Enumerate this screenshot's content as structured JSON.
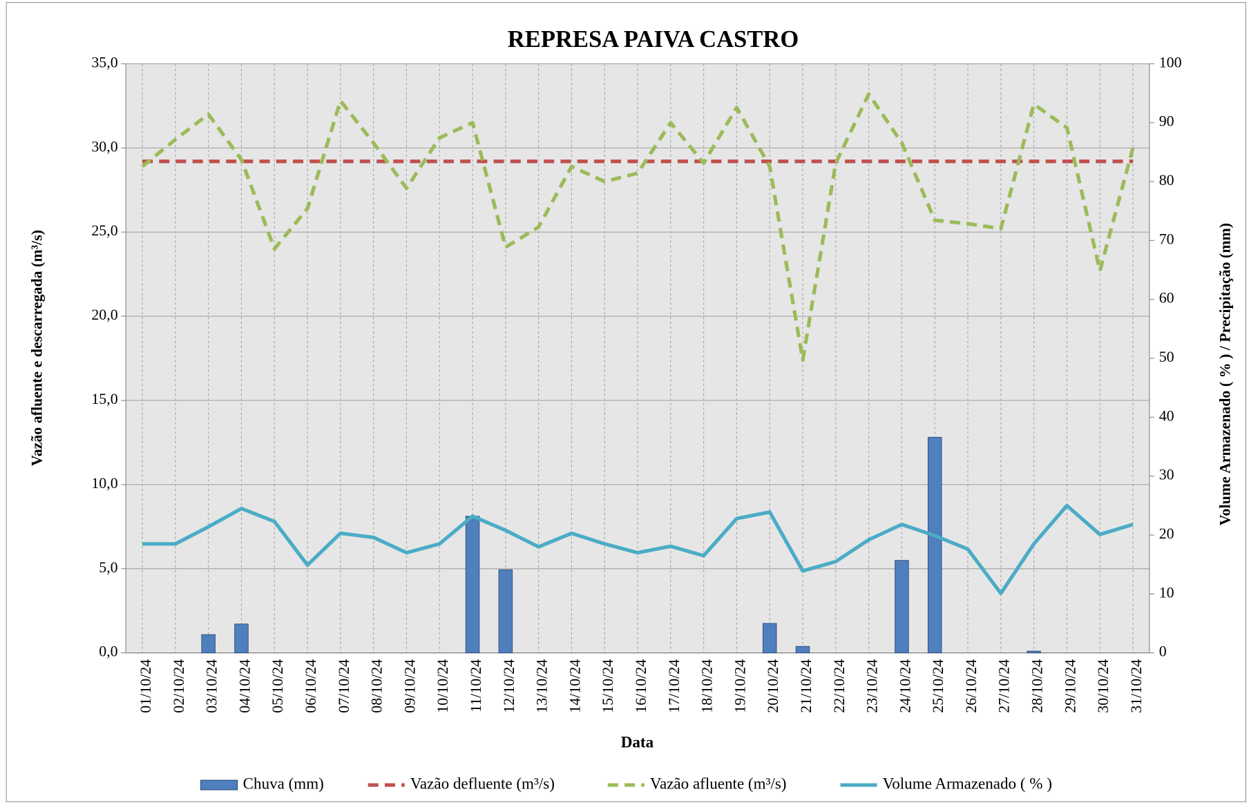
{
  "chart_data": {
    "type": "bar",
    "title": "REPRESA PAIVA CASTRO",
    "x_label": "Data",
    "y_label": "Vazão afluente e descarregada (m³/s)",
    "y2_label": "Volume Armazenado ( % ) / Precipitação  (mm)",
    "categories": [
      "01/10/24",
      "02/10/24",
      "03/10/24",
      "04/10/24",
      "05/10/24",
      "06/10/24",
      "07/10/24",
      "08/10/24",
      "09/10/24",
      "10/10/24",
      "11/10/24",
      "12/10/24",
      "13/10/24",
      "14/10/24",
      "15/10/24",
      "16/10/24",
      "17/10/24",
      "18/10/24",
      "19/10/24",
      "20/10/24",
      "21/10/24",
      "22/10/24",
      "23/10/24",
      "24/10/24",
      "25/10/24",
      "26/10/24",
      "27/10/24",
      "28/10/24",
      "29/10/24",
      "30/10/24",
      "31/10/24"
    ],
    "series": [
      {
        "name": "Chuva (mm)",
        "type": "bar",
        "axis": "y2",
        "color": "#4f7fbd",
        "values": [
          0,
          0,
          3.1,
          4.9,
          0,
          0,
          0,
          0,
          0,
          0,
          23.2,
          14.1,
          0,
          0,
          0,
          0,
          0,
          0,
          0,
          5.0,
          1.1,
          0,
          0,
          15.7,
          36.6,
          0,
          0,
          0.3,
          0,
          0,
          0
        ]
      },
      {
        "name": "Vazão defluente (m³/s)",
        "type": "line",
        "dashed": true,
        "color": "#c0504d",
        "values": [
          29.2,
          29.2,
          29.2,
          29.2,
          29.2,
          29.2,
          29.2,
          29.2,
          29.2,
          29.2,
          29.2,
          29.2,
          29.2,
          29.2,
          29.2,
          29.2,
          29.2,
          29.2,
          29.2,
          29.2,
          29.2,
          29.2,
          29.2,
          29.2,
          29.2,
          29.2,
          29.2,
          29.2,
          29.2,
          29.2,
          29.2
        ]
      },
      {
        "name": "Vazão afluente (m³/s)",
        "type": "line",
        "dashed": true,
        "color": "#9bbb59",
        "values": [
          28.9,
          30.5,
          32.0,
          29.3,
          24.0,
          26.4,
          32.8,
          30.3,
          27.6,
          30.6,
          31.5,
          24.1,
          25.3,
          28.9,
          28.0,
          28.5,
          31.5,
          29.1,
          32.4,
          28.9,
          17.4,
          29.1,
          33.2,
          30.3,
          25.7,
          25.5,
          25.2,
          32.6,
          31.2,
          22.7,
          30.0
        ]
      },
      {
        "name": "Volume Armazenado ( % )",
        "type": "line",
        "dashed": false,
        "axis": "y2",
        "color": "#4bacc6",
        "values": [
          18.5,
          18.5,
          21.4,
          24.5,
          22.3,
          14.9,
          20.3,
          19.6,
          17.0,
          18.5,
          23.2,
          20.8,
          18.0,
          20.3,
          18.5,
          17.0,
          18.1,
          16.5,
          22.8,
          23.9,
          13.9,
          15.5,
          19.2,
          21.8,
          19.9,
          17.6,
          10.1,
          18.5,
          25.0,
          20.1,
          21.8
        ]
      }
    ],
    "ylim": [
      0,
      35
    ],
    "yticks": [
      {
        "value": 0,
        "label": "0,0"
      },
      {
        "value": 5,
        "label": "5,0"
      },
      {
        "value": 10,
        "label": "10,0"
      },
      {
        "value": 15,
        "label": "15,0"
      },
      {
        "value": 20,
        "label": "20,0"
      },
      {
        "value": 25,
        "label": "25,0"
      },
      {
        "value": 30,
        "label": "30,0"
      },
      {
        "value": 35,
        "label": "35,0"
      }
    ],
    "y2lim": [
      0,
      100
    ],
    "y2ticks": [
      0,
      10,
      20,
      30,
      40,
      50,
      60,
      70,
      80,
      90,
      100
    ],
    "grid": true,
    "legend": "bottom"
  }
}
